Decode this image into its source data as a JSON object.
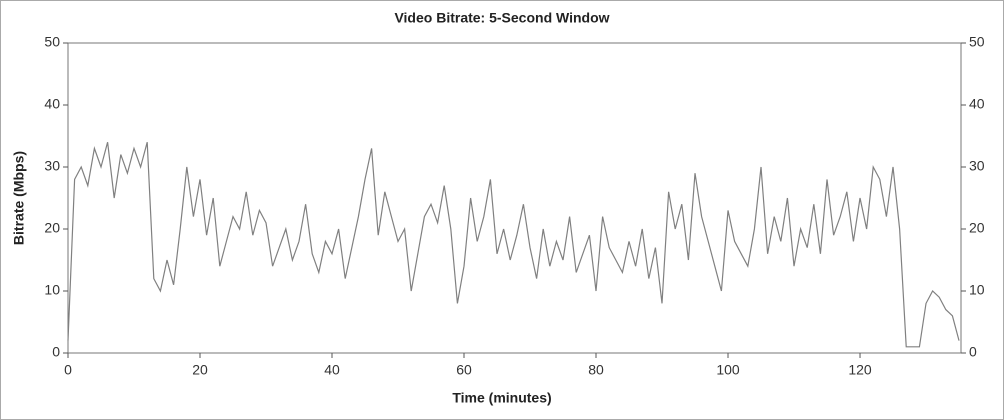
{
  "chart_data": {
    "type": "line",
    "title": "Video Bitrate: 5-Second Window",
    "x_label": "Time (minutes)",
    "y_label": "Bitrate (Mbps)",
    "xlim": [
      0,
      135.3
    ],
    "xticks": [
      0,
      20,
      40,
      60,
      80,
      100,
      120
    ],
    "ylim": [
      0,
      50
    ],
    "yticks": [
      0,
      10,
      20,
      30,
      40,
      50
    ],
    "y2lim": [
      0,
      50
    ],
    "y2ticks": [
      0,
      10,
      20,
      30,
      40,
      50
    ],
    "grid": false,
    "x": [
      0,
      1,
      2,
      3,
      4,
      5,
      6,
      7,
      8,
      9,
      10,
      11,
      12,
      13,
      14,
      15,
      16,
      17,
      18,
      19,
      20,
      21,
      22,
      23,
      24,
      25,
      26,
      27,
      28,
      29,
      30,
      31,
      32,
      33,
      34,
      35,
      36,
      37,
      38,
      39,
      40,
      41,
      42,
      43,
      44,
      45,
      46,
      47,
      48,
      49,
      50,
      51,
      52,
      53,
      54,
      55,
      56,
      57,
      58,
      59,
      60,
      61,
      62,
      63,
      64,
      65,
      66,
      67,
      68,
      69,
      70,
      71,
      72,
      73,
      74,
      75,
      76,
      77,
      78,
      79,
      80,
      81,
      82,
      83,
      84,
      85,
      86,
      87,
      88,
      89,
      90,
      91,
      92,
      93,
      94,
      95,
      96,
      97,
      98,
      99,
      100,
      101,
      102,
      103,
      104,
      105,
      106,
      107,
      108,
      109,
      110,
      111,
      112,
      113,
      114,
      115,
      116,
      117,
      118,
      119,
      120,
      121,
      122,
      123,
      124,
      125,
      126,
      127,
      128,
      129,
      130,
      131,
      132,
      133,
      134,
      135
    ],
    "series": [
      {
        "name": "Bitrate",
        "color": "#808080",
        "values": [
          2,
          28,
          30,
          27,
          33,
          30,
          34,
          25,
          32,
          29,
          33,
          30,
          34,
          12,
          10,
          15,
          11,
          20,
          30,
          22,
          28,
          19,
          25,
          14,
          18,
          22,
          20,
          26,
          19,
          23,
          21,
          14,
          17,
          20,
          15,
          18,
          24,
          16,
          13,
          18,
          16,
          20,
          12,
          17,
          22,
          28,
          33,
          19,
          26,
          22,
          18,
          20,
          10,
          16,
          22,
          24,
          21,
          27,
          20,
          8,
          14,
          25,
          18,
          22,
          28,
          16,
          20,
          15,
          19,
          24,
          17,
          12,
          20,
          14,
          18,
          15,
          22,
          13,
          16,
          19,
          10,
          22,
          17,
          15,
          13,
          18,
          14,
          20,
          12,
          17,
          8,
          26,
          20,
          24,
          15,
          29,
          22,
          18,
          14,
          10,
          23,
          18,
          16,
          14,
          20,
          30,
          16,
          22,
          18,
          25,
          14,
          20,
          17,
          24,
          16,
          28,
          19,
          22,
          26,
          18,
          25,
          20,
          30,
          28,
          22,
          30,
          20,
          1,
          1,
          1,
          8,
          10,
          9,
          7,
          6,
          2
        ]
      }
    ]
  }
}
